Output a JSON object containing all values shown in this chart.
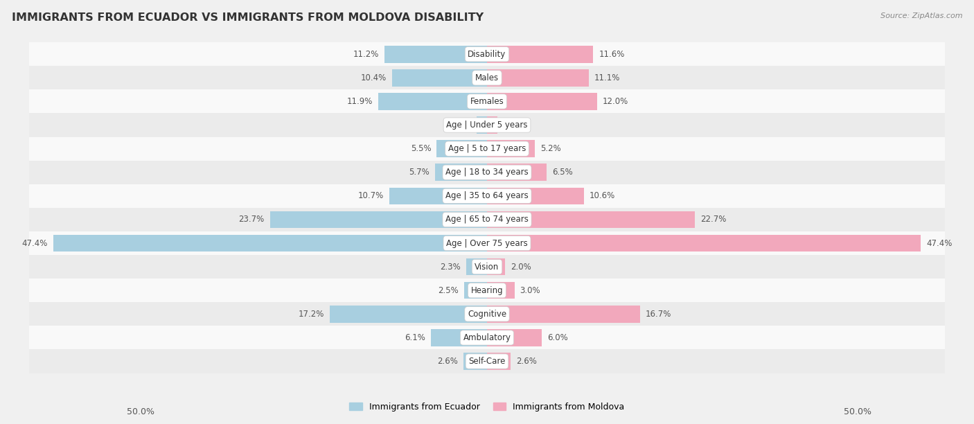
{
  "title": "IMMIGRANTS FROM ECUADOR VS IMMIGRANTS FROM MOLDOVA DISABILITY",
  "source": "Source: ZipAtlas.com",
  "categories": [
    "Disability",
    "Males",
    "Females",
    "Age | Under 5 years",
    "Age | 5 to 17 years",
    "Age | 18 to 34 years",
    "Age | 35 to 64 years",
    "Age | 65 to 74 years",
    "Age | Over 75 years",
    "Vision",
    "Hearing",
    "Cognitive",
    "Ambulatory",
    "Self-Care"
  ],
  "ecuador_values": [
    11.2,
    10.4,
    11.9,
    1.1,
    5.5,
    5.7,
    10.7,
    23.7,
    47.4,
    2.3,
    2.5,
    17.2,
    6.1,
    2.6
  ],
  "moldova_values": [
    11.6,
    11.1,
    12.0,
    1.1,
    5.2,
    6.5,
    10.6,
    22.7,
    47.4,
    2.0,
    3.0,
    16.7,
    6.0,
    2.6
  ],
  "ecuador_color": "#a8cfe0",
  "moldova_color": "#f2a8bc",
  "ecuador_label": "Immigrants from Ecuador",
  "moldova_label": "Immigrants from Moldova",
  "axis_limit": 50.0,
  "background_color": "#f0f0f0",
  "row_bg_light": "#f9f9f9",
  "row_bg_dark": "#ebebeb",
  "title_fontsize": 11.5,
  "bar_height": 0.72,
  "label_fontsize": 8.5,
  "category_fontsize": 8.5,
  "xlim_label": "50.0%"
}
